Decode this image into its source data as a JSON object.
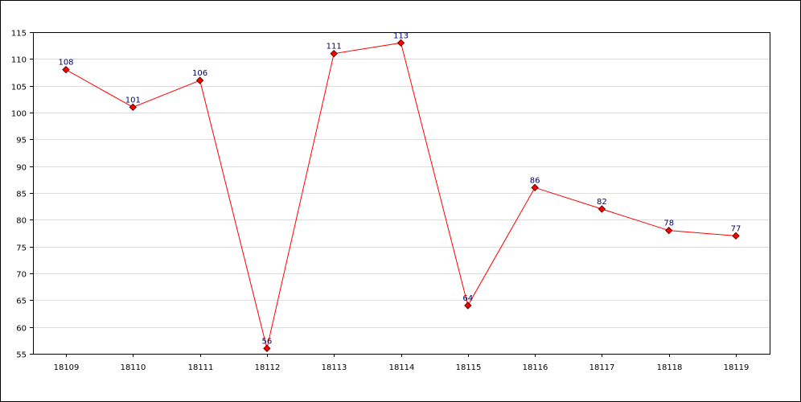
{
  "chart_data": {
    "type": "line",
    "x": [
      "18109",
      "18110",
      "18111",
      "18112",
      "18113",
      "18114",
      "18115",
      "18116",
      "18117",
      "18118",
      "18119"
    ],
    "series": [
      {
        "values": [
          108,
          101,
          106,
          56,
          111,
          113,
          64,
          86,
          82,
          78,
          77
        ]
      }
    ],
    "ylim": [
      55,
      115
    ],
    "yticks": [
      55,
      60,
      65,
      70,
      75,
      80,
      85,
      90,
      95,
      100,
      105,
      110,
      115
    ],
    "grid": true,
    "line_color": "#ff0000",
    "marker_color": "#ff0000",
    "label_color": "#000066",
    "grid_color": "#dddddd"
  }
}
